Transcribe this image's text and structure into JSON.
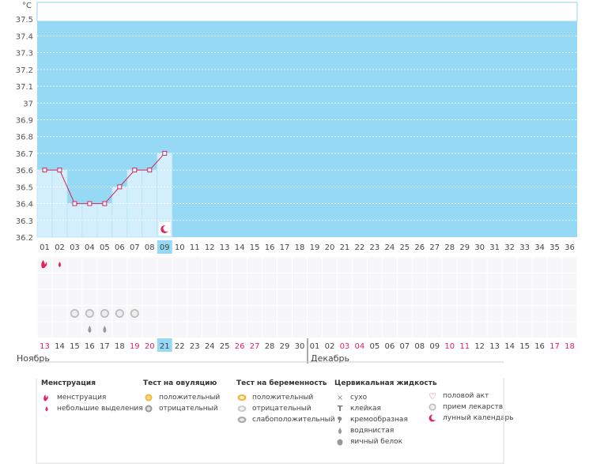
{
  "chart_data": {
    "type": "line",
    "ylabel": "°C",
    "ylim": [
      36.2,
      37.6
    ],
    "y_ticks": [
      "36.2",
      "36.3",
      "36.4",
      "36.5",
      "36.6",
      "36.7",
      "36.8",
      "36.9",
      "37",
      "37.1",
      "37.2",
      "37.3",
      "37.4",
      "37.5"
    ],
    "cycle_days": [
      "01",
      "02",
      "03",
      "04",
      "05",
      "06",
      "07",
      "08",
      "09",
      "10",
      "11",
      "12",
      "13",
      "14",
      "15",
      "16",
      "17",
      "18",
      "19",
      "20",
      "21",
      "22",
      "23",
      "24",
      "25",
      "26",
      "27",
      "28",
      "29",
      "30",
      "31",
      "32",
      "33",
      "34",
      "35",
      "36"
    ],
    "temperature": [
      36.6,
      36.6,
      36.4,
      36.4,
      36.4,
      36.5,
      36.6,
      36.6,
      36.7
    ],
    "current_day_index": 8,
    "moon_day_index": 8,
    "menstruation_day_indices": [
      0
    ],
    "spotting_day_indices": [
      1
    ],
    "medication_day_indices": [
      2,
      3,
      4,
      5,
      6
    ],
    "watery_day_indices": [
      3,
      4
    ],
    "dates": [
      "13",
      "14",
      "15",
      "16",
      "17",
      "18",
      "19",
      "20",
      "21",
      "22",
      "23",
      "24",
      "25",
      "26",
      "27",
      "28",
      "29",
      "30",
      "01",
      "02",
      "03",
      "04",
      "05",
      "06",
      "07",
      "08",
      "09",
      "10",
      "11",
      "12",
      "13",
      "14",
      "15",
      "16",
      "17",
      "18"
    ],
    "weekend_date_indices": [
      0,
      6,
      7,
      13,
      14,
      20,
      21,
      27,
      28,
      34,
      35
    ],
    "months": [
      "Ноябрь",
      "Декабрь"
    ]
  },
  "legend": {
    "menstruation": {
      "title": "Менструация",
      "items": [
        "менструация",
        "небольшие выделения"
      ]
    },
    "ovulation": {
      "title": "Тест на овуляцию",
      "items": [
        "положительный",
        "отрицательный"
      ]
    },
    "pregnancy": {
      "title": "Тест на беременность",
      "items": [
        "положительный",
        "отрицательный",
        "слабоположительный"
      ]
    },
    "cervical": {
      "title": "Цервикальная жидкость",
      "items": [
        "сухо",
        "клейкая",
        "кремообразная",
        "водянистая",
        "яичный белок"
      ]
    },
    "other": {
      "items": [
        "половой акт",
        "прием лекарств",
        "лунный календарь"
      ]
    }
  },
  "colors": {
    "plot_bg": "#95d9f4",
    "filled": "#d4effc",
    "line": "#d6215d",
    "accent": "#e0245e",
    "today": "#95d9f4"
  }
}
